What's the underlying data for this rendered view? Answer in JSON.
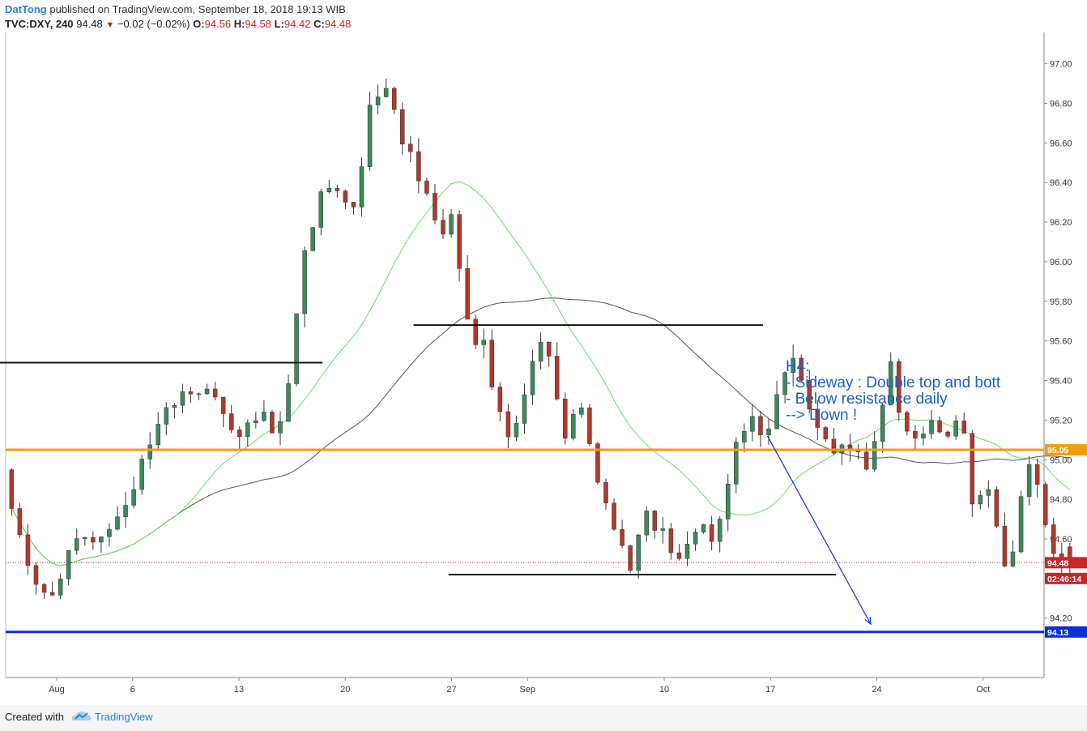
{
  "header": {
    "author": "DatTong",
    "published": "published on TradingView.com, September 18, 2018 19:13 WIB",
    "symbol": "TVC:DXY, 240",
    "last": "94.48",
    "change": "−0.02 (−0.02%)",
    "o_label": "O:",
    "o_value": "94.56",
    "h_label": "H:",
    "h_value": "94.58",
    "l_label": "L:",
    "l_value": "94.42",
    "c_label": "C:",
    "c_value": "94.48",
    "down_icon": "triangle-down-icon"
  },
  "footer": {
    "created_with": "Created with",
    "brand": "TradingView",
    "logo_icon": "tradingview-cloud-icon"
  },
  "colors": {
    "bull": "#3a8a5a",
    "bear": "#b0392b",
    "support_orange": "#f39c12",
    "blue_level": "#0b2fd6",
    "sma_green": "#66dd66",
    "sma_gray": "#555555",
    "annotation": "#1f5fbf"
  },
  "chart_data": {
    "type": "candlestick",
    "symbol": "TVC:DXY",
    "timeframe": "240",
    "ylim": [
      93.9,
      97.15
    ],
    "y_ticks": [
      "97.00",
      "96.80",
      "96.60",
      "96.40",
      "96.20",
      "96.00",
      "95.80",
      "95.60",
      "95.40",
      "95.20",
      "95.00",
      "94.80",
      "94.60",
      "94.20"
    ],
    "x_ticks": [
      "Aug",
      "6",
      "13",
      "20",
      "27",
      "Sep",
      "10",
      "17",
      "24",
      "Oct"
    ],
    "price_labels": [
      {
        "value": 95.05,
        "text": "95.05",
        "color": "#f39c12"
      },
      {
        "value": 94.48,
        "text": "94.48",
        "color": "#c62828"
      },
      {
        "value": 94.4,
        "text": "02:46:14",
        "color": "#c62828"
      },
      {
        "value": 94.13,
        "text": "94.13",
        "color": "#0b2fd6"
      }
    ],
    "annotation": [
      "H4:",
      "- Sideway : Double top and bott",
      "- Below resistance daily",
      "--> Down !"
    ],
    "h_lines": [
      {
        "value": 95.49,
        "color": "#111111",
        "from": "Jul 23",
        "to": "Aug 18"
      },
      {
        "value": 95.68,
        "color": "#111111",
        "from": "Aug 24",
        "to": "Sep 17"
      },
      {
        "value": 94.42,
        "color": "#111111",
        "from": "Aug 27",
        "to": "Sep 21"
      },
      {
        "value": 95.05,
        "color": "#f39c12",
        "from": "start",
        "to": "end"
      },
      {
        "value": 94.13,
        "color": "#0b2fd6",
        "from": "start",
        "to": "end"
      },
      {
        "value": 94.48,
        "color": "#c62828",
        "style": "dotted",
        "from": "start",
        "to": "end"
      }
    ],
    "arrow": {
      "from": {
        "date": "Sep 17",
        "value": 95.12
      },
      "to": {
        "date": "Sep 22",
        "value": 94.17
      }
    },
    "close_anchors": [
      [
        0,
        94.9
      ],
      [
        5,
        94.62
      ],
      [
        10,
        94.35
      ],
      [
        16,
        94.32
      ],
      [
        22,
        94.48
      ],
      [
        28,
        94.6
      ],
      [
        34,
        94.62
      ],
      [
        42,
        94.74
      ],
      [
        48,
        94.9
      ],
      [
        56,
        95.22
      ],
      [
        64,
        95.3
      ],
      [
        70,
        95.38
      ],
      [
        78,
        95.27
      ],
      [
        86,
        95.1
      ],
      [
        94,
        95.22
      ],
      [
        100,
        95.08
      ],
      [
        106,
        95.6
      ],
      [
        110,
        96.08
      ],
      [
        116,
        96.35
      ],
      [
        120,
        96.42
      ],
      [
        128,
        96.25
      ],
      [
        134,
        96.8
      ],
      [
        140,
        96.88
      ],
      [
        144,
        96.68
      ],
      [
        148,
        96.55
      ],
      [
        154,
        96.38
      ],
      [
        160,
        96.12
      ],
      [
        165,
        96.25
      ],
      [
        168,
        95.8
      ],
      [
        172,
        95.55
      ],
      [
        176,
        95.6
      ],
      [
        180,
        95.25
      ],
      [
        186,
        95.1
      ],
      [
        192,
        95.35
      ],
      [
        196,
        95.65
      ],
      [
        200,
        95.55
      ],
      [
        206,
        95.15
      ],
      [
        212,
        95.28
      ],
      [
        218,
        94.9
      ],
      [
        224,
        94.65
      ],
      [
        230,
        94.48
      ],
      [
        236,
        94.75
      ],
      [
        242,
        94.62
      ],
      [
        248,
        94.48
      ],
      [
        256,
        94.7
      ],
      [
        262,
        94.58
      ],
      [
        268,
        95.05
      ],
      [
        274,
        95.22
      ],
      [
        280,
        95.1
      ],
      [
        286,
        95.4
      ],
      [
        290,
        95.55
      ],
      [
        294,
        95.3
      ],
      [
        300,
        95.18
      ],
      [
        306,
        95.02
      ],
      [
        312,
        95.1
      ],
      [
        318,
        94.92
      ],
      [
        322,
        95.25
      ],
      [
        326,
        95.5
      ],
      [
        330,
        95.2
      ],
      [
        336,
        95.05
      ],
      [
        342,
        95.2
      ],
      [
        348,
        95.15
      ],
      [
        352,
        95.28
      ],
      [
        356,
        94.82
      ],
      [
        362,
        94.85
      ],
      [
        366,
        94.55
      ],
      [
        370,
        94.45
      ],
      [
        374,
        94.85
      ],
      [
        378,
        94.98
      ],
      [
        382,
        94.7
      ],
      [
        386,
        94.5
      ],
      [
        390,
        94.48
      ]
    ]
  }
}
